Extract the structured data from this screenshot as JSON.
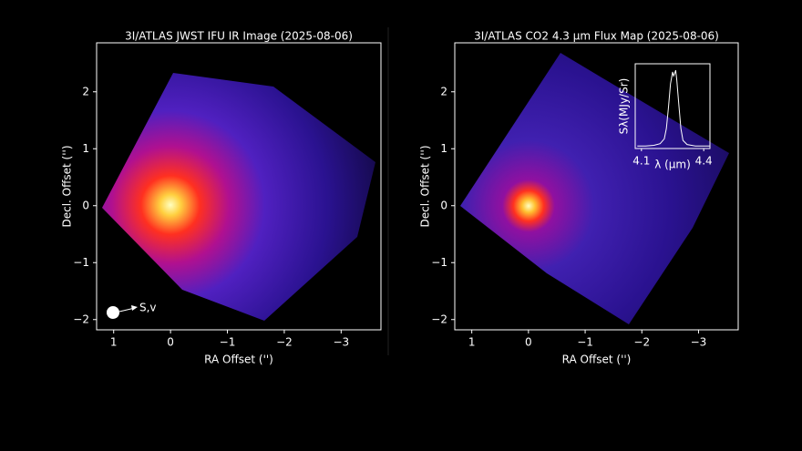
{
  "chart_data": [
    {
      "type": "image",
      "title": "3I/ATLAS JWST IFU IR Image (2025-08-06)",
      "xlabel": "RA Offset ('')",
      "ylabel": "Decl. Offset ('')",
      "xlim": [
        1.3,
        -3.7
      ],
      "ylim": [
        -2.18,
        2.86
      ],
      "xticks": [
        1,
        0,
        {
          "value": -1,
          "label": "−1"
        },
        {
          "value": -2,
          "label": "−2"
        },
        {
          "value": -3,
          "label": "−3"
        }
      ],
      "yticks": [
        {
          "value": -2,
          "label": "−2"
        },
        {
          "value": -1,
          "label": "−1"
        },
        0,
        1,
        2
      ],
      "annotation": "S,v"
    },
    {
      "type": "image",
      "title": "3I/ATLAS CO2 4.3 µm Flux Map (2025-08-06)",
      "xlabel": "RA Offset ('')",
      "ylabel": "Decl. Offset ('')",
      "xlim": [
        1.3,
        -3.7
      ],
      "ylim": [
        -2.18,
        2.86
      ],
      "xticks": [
        1,
        0,
        {
          "value": -1,
          "label": "−1"
        },
        {
          "value": -2,
          "label": "−2"
        },
        {
          "value": -3,
          "label": "−3"
        }
      ],
      "yticks": [
        {
          "value": -2,
          "label": "−2"
        },
        {
          "value": -1,
          "label": "−1"
        },
        0,
        1,
        2
      ]
    },
    {
      "type": "line",
      "xlabel": "λ (µm)",
      "ylabel": "Sλ(MJy/Sr)",
      "xlim": [
        4.07,
        4.43
      ],
      "ylim": [
        0,
        1.05
      ],
      "xticks": [
        4.1,
        4.4
      ],
      "color": "#ffffff",
      "x": [
        4.08,
        4.12,
        4.16,
        4.19,
        4.21,
        4.22,
        4.23,
        4.24,
        4.25,
        4.255,
        4.26,
        4.265,
        4.27,
        4.28,
        4.29,
        4.3,
        4.32,
        4.36,
        4.4,
        4.43
      ],
      "values": [
        0.03,
        0.03,
        0.04,
        0.06,
        0.12,
        0.25,
        0.5,
        0.8,
        0.95,
        0.9,
        0.93,
        0.97,
        0.85,
        0.55,
        0.25,
        0.1,
        0.05,
        0.03,
        0.03,
        0.03
      ]
    }
  ]
}
